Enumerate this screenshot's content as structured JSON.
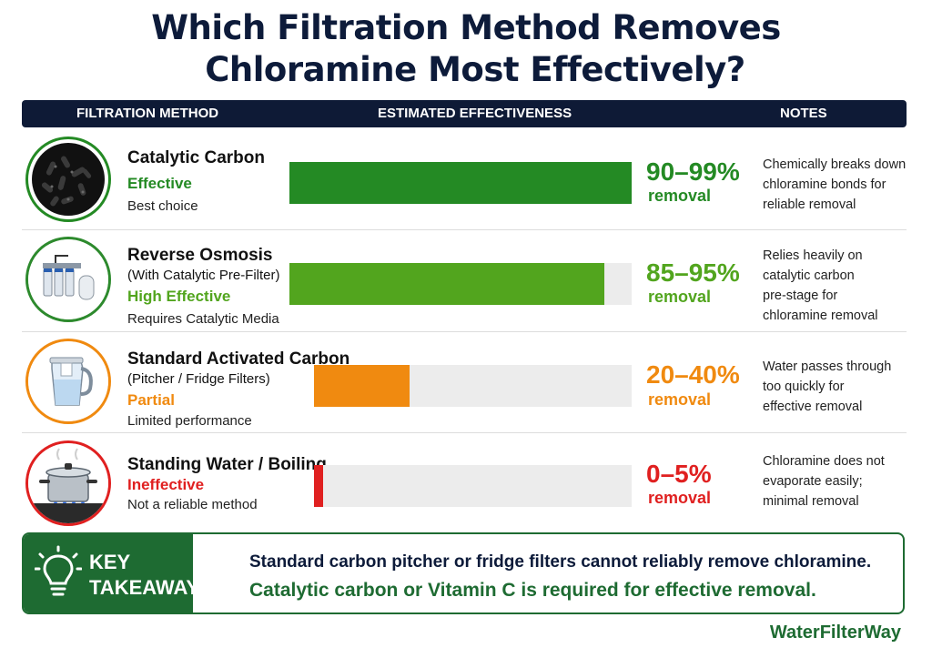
{
  "title": {
    "line1": "Which Filtration Method Removes",
    "line2": "Chloramine Most Effectively?"
  },
  "header": {
    "method": "FILTRATION METHOD",
    "effectiveness": "ESTIMATED EFFECTIVENESS",
    "notes": "NOTES"
  },
  "colors": {
    "green": "#248a24",
    "light_green": "#52a51e",
    "orange": "#f08a10",
    "red": "#e02020",
    "navy": "#0e1a36",
    "dark_green": "#1e6b32",
    "track": "#ececec"
  },
  "rows": [
    {
      "name": "Catalytic Carbon",
      "subtitle": "",
      "rating": "Effective",
      "detail": "Best choice",
      "icon": "carbon-granules-icon",
      "color": "#248a24",
      "pct": "90–99%",
      "pct_label": "removal",
      "fill": 1.0,
      "note": [
        "Chemically breaks down",
        "chloramine bonds for",
        "reliable removal"
      ]
    },
    {
      "name": "Reverse Osmosis",
      "subtitle": "(With Catalytic Pre-Filter)",
      "rating": "High Effective",
      "detail": "Requires Catalytic Media",
      "icon": "ro-system-icon",
      "color": "#52a51e",
      "pct": "85–95%",
      "pct_label": "removal",
      "fill": 0.92,
      "note": [
        "Relies heavily on",
        "catalytic carbon",
        "pre-stage for",
        "chloramine removal"
      ]
    },
    {
      "name": "Standard Activated Carbon",
      "subtitle": "(Pitcher / Fridge Filters)",
      "rating": "Partial",
      "detail": "Limited performance",
      "icon": "water-pitcher-icon",
      "color": "#f08a10",
      "pct": "20–40%",
      "pct_label": "removal",
      "fill": 0.3,
      "note": [
        "Water passes through",
        "too quickly for",
        "effective removal"
      ]
    },
    {
      "name": "Standing Water / Boiling",
      "subtitle": "",
      "rating": "Ineffective",
      "detail": "Not a reliable method",
      "icon": "boiling-pot-icon",
      "color": "#e02020",
      "pct": "0–5%",
      "pct_label": "removal",
      "fill": 0.03,
      "note": [
        "Chloramine does not",
        "evaporate easily;",
        "minimal removal"
      ]
    }
  ],
  "takeaway": {
    "label_line1": "KEY",
    "label_line2": "TAKEAWAY",
    "icon": "lightbulb-icon",
    "line1": "Standard carbon pitcher or fridge filters cannot reliably remove chloramine.",
    "line2": "Catalytic carbon or Vitamin C is required for effective removal."
  },
  "brand": "WaterFilterWay",
  "chart_data": {
    "type": "bar",
    "orientation": "horizontal",
    "title": "Which Filtration Method Removes Chloramine Most Effectively?",
    "categories": [
      "Catalytic Carbon",
      "Reverse Osmosis",
      "Standard Activated Carbon",
      "Standing Water / Boiling"
    ],
    "ranges": [
      [
        90,
        99
      ],
      [
        85,
        95
      ],
      [
        20,
        40
      ],
      [
        0,
        5
      ]
    ],
    "labels": [
      "90–99%",
      "85–95%",
      "20–40%",
      "0–5%"
    ],
    "ratings": [
      "Effective",
      "High Effective",
      "Partial",
      "Ineffective"
    ],
    "xlim": [
      0,
      100
    ]
  }
}
